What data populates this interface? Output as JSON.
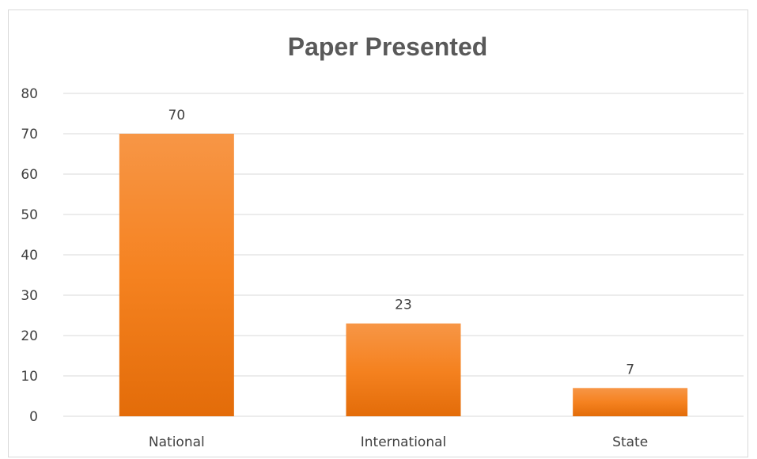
{
  "chart_data": {
    "type": "bar",
    "title": "Paper Presented",
    "categories": [
      "National",
      "International",
      "State"
    ],
    "values": [
      70,
      23,
      7
    ],
    "data_labels": [
      "70",
      "23",
      "7"
    ],
    "ylim": [
      0,
      80
    ],
    "yticks": [
      "0",
      "10",
      "20",
      "30",
      "40",
      "50",
      "60",
      "70",
      "80"
    ],
    "grid": true,
    "legend": "none",
    "bar_color_top": "#f79646",
    "bar_color_mid": "#f58220",
    "bar_color_bottom": "#e36c09",
    "gridline_color": "#d9d9d9",
    "text_color": "#404040",
    "title_color": "#595959"
  }
}
